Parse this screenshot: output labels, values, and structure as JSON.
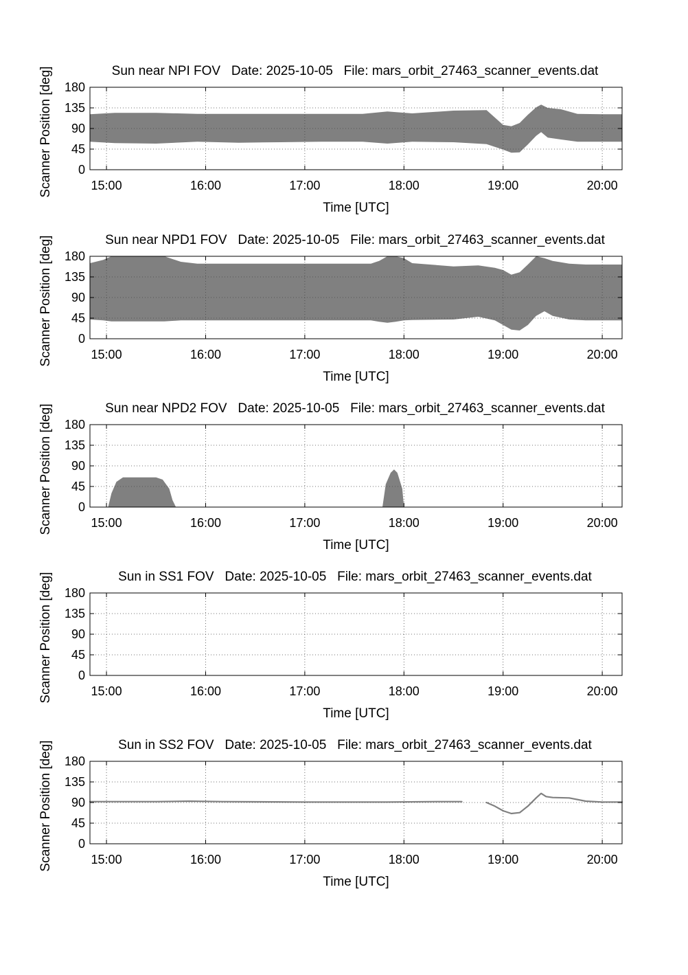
{
  "chart_data": [
    {
      "type": "area",
      "title": "Sun near NPI FOV   Date: 2025-10-05   File: mars_orbit_27463_scanner_events.dat",
      "xlabel": "Time [UTC]",
      "ylabel": "Scanner Position [deg]",
      "xlim": [
        "14:50",
        "20:12"
      ],
      "ylim": [
        0,
        180
      ],
      "xticks": [
        "15:00",
        "16:00",
        "17:00",
        "18:00",
        "19:00",
        "20:00"
      ],
      "yticks": [
        0,
        45,
        90,
        135,
        180
      ],
      "grid": true,
      "color": "#808080",
      "series": [
        {
          "x": [
            "14:50",
            "15:05",
            "15:30",
            "15:55",
            "16:20",
            "16:45",
            "17:10",
            "17:35",
            "17:50",
            "18:05",
            "18:30",
            "18:50",
            "19:00",
            "19:05",
            "19:10",
            "19:15",
            "19:20",
            "19:23",
            "19:27",
            "19:35",
            "19:45",
            "20:00",
            "20:12"
          ],
          "upper": [
            121,
            124,
            124,
            122,
            122,
            122,
            122,
            122,
            127,
            123,
            129,
            130,
            98,
            95,
            102,
            120,
            136,
            142,
            135,
            132,
            122,
            121,
            121
          ],
          "lower": [
            61,
            58,
            57,
            61,
            59,
            60,
            61,
            61,
            57,
            61,
            60,
            56,
            44,
            37,
            38,
            55,
            74,
            82,
            70,
            66,
            61,
            61,
            61
          ]
        }
      ]
    },
    {
      "type": "area",
      "title": "Sun near NPD1 FOV   Date: 2025-10-05   File: mars_orbit_27463_scanner_events.dat",
      "xlabel": "Time [UTC]",
      "ylabel": "Scanner Position [deg]",
      "xlim": [
        "14:50",
        "20:12"
      ],
      "ylim": [
        0,
        180
      ],
      "xticks": [
        "15:00",
        "16:00",
        "17:00",
        "18:00",
        "19:00",
        "20:00"
      ],
      "yticks": [
        0,
        45,
        90,
        135,
        180
      ],
      "grid": true,
      "color": "#808080",
      "series": [
        {
          "x": [
            "14:50",
            "14:58",
            "15:03",
            "15:35",
            "15:45",
            "15:55",
            "16:30",
            "17:40",
            "17:45",
            "17:50",
            "17:55",
            "18:00",
            "18:05",
            "18:30",
            "18:45",
            "18:55",
            "19:00",
            "19:05",
            "19:10",
            "19:15",
            "19:20",
            "19:25",
            "19:30",
            "19:40",
            "19:50",
            "20:12"
          ],
          "upper": [
            165,
            172,
            180,
            180,
            168,
            164,
            164,
            164,
            170,
            180,
            180,
            176,
            165,
            158,
            160,
            155,
            150,
            140,
            145,
            162,
            180,
            176,
            170,
            164,
            162,
            162
          ],
          "lower": [
            42,
            40,
            38,
            38,
            40,
            40,
            40,
            40,
            37,
            35,
            37,
            40,
            41,
            42,
            48,
            40,
            30,
            20,
            18,
            30,
            50,
            60,
            50,
            42,
            40,
            40
          ]
        }
      ]
    },
    {
      "type": "area",
      "title": "Sun near NPD2 FOV   Date: 2025-10-05   File: mars_orbit_27463_scanner_events.dat",
      "xlabel": "Time [UTC]",
      "ylabel": "Scanner Position [deg]",
      "xlim": [
        "14:50",
        "20:12"
      ],
      "ylim": [
        0,
        180
      ],
      "xticks": [
        "15:00",
        "16:00",
        "17:00",
        "18:00",
        "19:00",
        "20:00"
      ],
      "yticks": [
        0,
        45,
        90,
        135,
        180
      ],
      "grid": true,
      "color": "#808080",
      "series": [
        {
          "x": [
            "15:01",
            "15:03",
            "15:06",
            "15:10",
            "15:30",
            "15:34",
            "15:38",
            "15:40",
            "15:42"
          ],
          "upper": [
            0,
            30,
            55,
            65,
            65,
            60,
            40,
            15,
            0
          ],
          "lower": [
            0,
            0,
            0,
            0,
            0,
            0,
            0,
            0,
            0
          ]
        },
        {
          "x": [
            "17:47",
            "17:49",
            "17:52",
            "17:54",
            "17:56",
            "17:59",
            "18:00"
          ],
          "upper": [
            0,
            50,
            75,
            82,
            75,
            40,
            0
          ],
          "lower": [
            0,
            0,
            0,
            0,
            0,
            0,
            0
          ]
        }
      ]
    },
    {
      "type": "area",
      "title": "Sun in SS1 FOV   Date: 2025-10-05   File: mars_orbit_27463_scanner_events.dat",
      "xlabel": "Time [UTC]",
      "ylabel": "Scanner Position [deg]",
      "xlim": [
        "14:50",
        "20:12"
      ],
      "ylim": [
        0,
        180
      ],
      "xticks": [
        "15:00",
        "16:00",
        "17:00",
        "18:00",
        "19:00",
        "20:00"
      ],
      "yticks": [
        0,
        45,
        90,
        135,
        180
      ],
      "grid": true,
      "color": "#808080",
      "series": []
    },
    {
      "type": "line",
      "title": "Sun in SS2 FOV   Date: 2025-10-05   File: mars_orbit_27463_scanner_events.dat",
      "xlabel": "Time [UTC]",
      "ylabel": "Scanner Position [deg]",
      "xlim": [
        "14:50",
        "20:12"
      ],
      "ylim": [
        0,
        180
      ],
      "xticks": [
        "15:00",
        "16:00",
        "17:00",
        "18:00",
        "19:00",
        "20:00"
      ],
      "yticks": [
        0,
        45,
        90,
        135,
        180
      ],
      "grid": true,
      "color": "#808080",
      "series": [
        {
          "x": [
            "14:50",
            "15:30",
            "15:50",
            "16:10",
            "17:00",
            "17:50",
            "18:20",
            "18:35"
          ],
          "y": [
            92,
            92,
            93,
            92,
            91,
            91,
            92,
            92
          ]
        },
        {
          "x": [
            "18:50",
            "18:55",
            "19:00",
            "19:05",
            "19:10",
            "19:15",
            "19:20",
            "19:23",
            "19:26",
            "19:30",
            "19:40",
            "19:50",
            "20:00",
            "20:12"
          ],
          "y": [
            90,
            82,
            72,
            66,
            68,
            82,
            100,
            110,
            103,
            101,
            100,
            93,
            91,
            91
          ]
        }
      ]
    }
  ]
}
